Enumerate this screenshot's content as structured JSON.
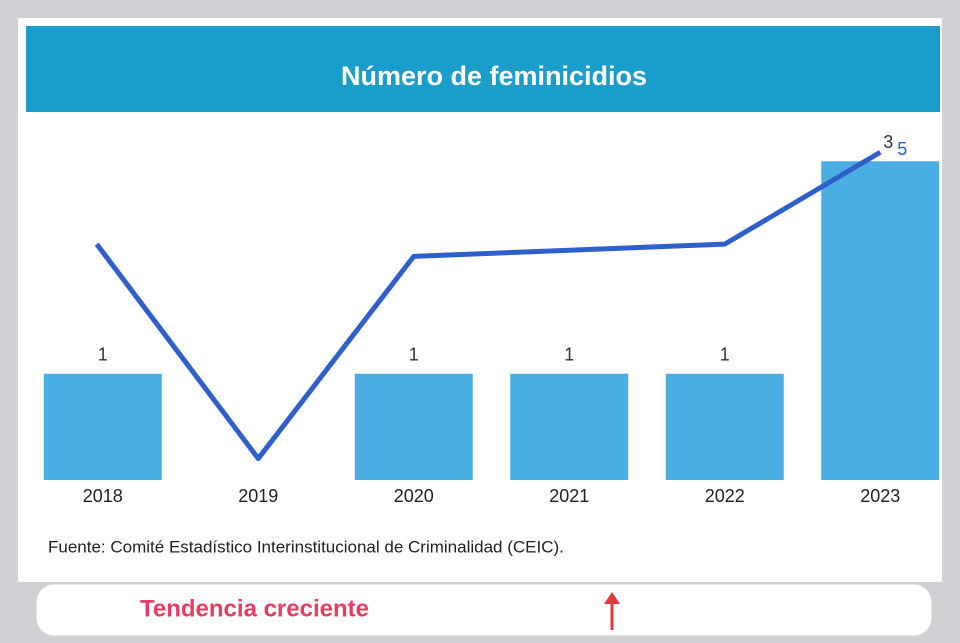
{
  "chart_data": {
    "type": "bar",
    "title": "Número de feminicidios",
    "categories": [
      "2018",
      "2019",
      "2020",
      "2021",
      "2022",
      "2023"
    ],
    "series": [
      {
        "type": "bar",
        "color": "#4aaee3",
        "values": [
          1,
          0,
          1,
          1,
          1,
          3
        ],
        "value_labels": [
          "1",
          null,
          "1",
          "1",
          "1",
          "3"
        ]
      },
      {
        "type": "line",
        "axis": "y2",
        "color": "#2f5fcb",
        "values": [
          3.5,
          0,
          3.3,
          3.4,
          3.5,
          5
        ],
        "value_labels": [
          null,
          null,
          null,
          null,
          null,
          "5"
        ]
      }
    ],
    "ylim": [
      0,
      3.2
    ],
    "y2lim": [
      -0.35,
      5.2
    ],
    "source": "Fuente: Comité Estadístico Interinstitucional de Criminalidad (CEIC).",
    "annotation": "Tendencia creciente"
  }
}
